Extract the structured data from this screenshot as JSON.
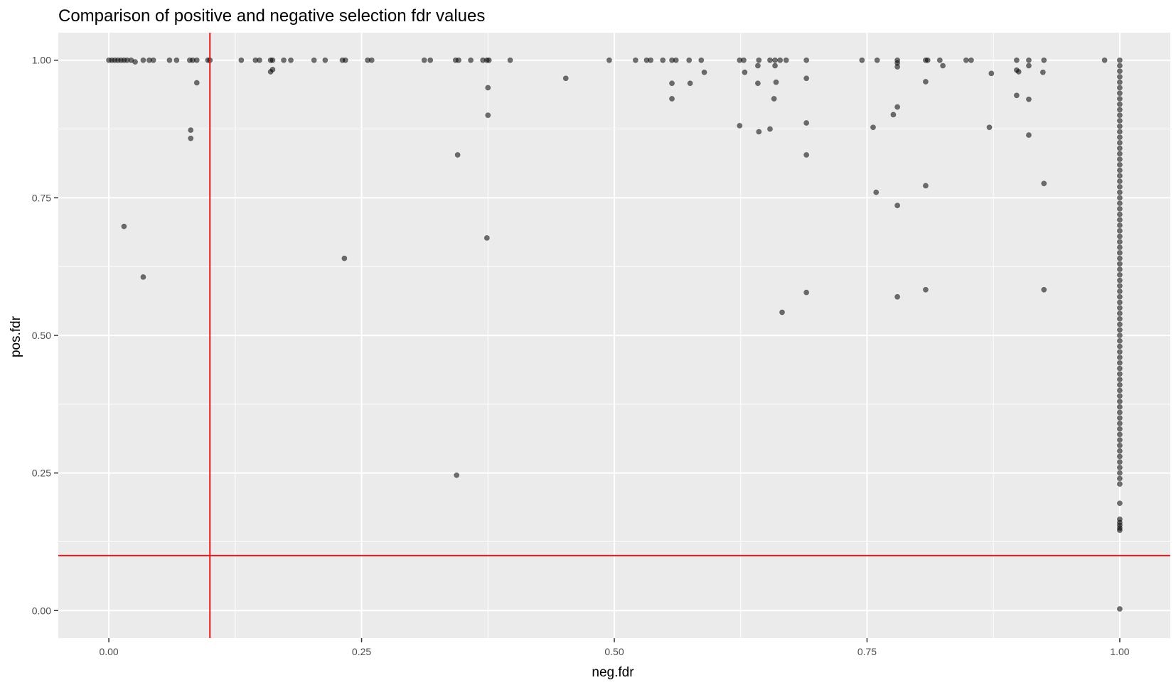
{
  "chart_data": {
    "type": "scatter",
    "title": "Comparison of positive and negative selection fdr values",
    "xlabel": "neg.fdr",
    "ylabel": "pos.fdr",
    "xlim": [
      -0.05,
      1.05
    ],
    "ylim": [
      -0.05,
      1.05
    ],
    "x_ticks": [
      {
        "value": 0.0,
        "label": "0.00"
      },
      {
        "value": 0.25,
        "label": "0.25"
      },
      {
        "value": 0.5,
        "label": "0.50"
      },
      {
        "value": 0.75,
        "label": "0.75"
      },
      {
        "value": 1.0,
        "label": "1.00"
      }
    ],
    "y_ticks": [
      {
        "value": 0.0,
        "label": "0.00"
      },
      {
        "value": 0.25,
        "label": "0.25"
      },
      {
        "value": 0.5,
        "label": "0.50"
      },
      {
        "value": 0.75,
        "label": "0.75"
      },
      {
        "value": 1.0,
        "label": "1.00"
      }
    ],
    "reference_lines": {
      "vertical_x": 0.1,
      "horizontal_y": 0.1,
      "color": "#e41a1c"
    },
    "grid": true,
    "legend": "none",
    "colors": {
      "panel": "#ebebeb",
      "grid": "#ffffff",
      "point": "#000000",
      "point_opacity": 0.55
    },
    "points": [
      [
        0.0,
        1.0
      ],
      [
        0.003,
        1.0
      ],
      [
        0.006,
        1.0
      ],
      [
        0.009,
        1.0
      ],
      [
        0.012,
        1.0
      ],
      [
        0.015,
        1.0
      ],
      [
        0.018,
        1.0
      ],
      [
        0.022,
        1.0
      ],
      [
        0.026,
        0.997
      ],
      [
        0.034,
        1.0
      ],
      [
        0.04,
        1.0
      ],
      [
        0.044,
        1.0
      ],
      [
        0.06,
        1.0
      ],
      [
        0.067,
        1.0
      ],
      [
        0.08,
        1.0
      ],
      [
        0.083,
        1.0
      ],
      [
        0.087,
        1.0
      ],
      [
        0.098,
        1.0
      ],
      [
        0.1,
        1.0
      ],
      [
        0.087,
        0.959
      ],
      [
        0.081,
        0.873
      ],
      [
        0.081,
        0.858
      ],
      [
        0.015,
        0.698
      ],
      [
        0.034,
        0.606
      ],
      [
        0.131,
        1.0
      ],
      [
        0.145,
        1.0
      ],
      [
        0.149,
        1.0
      ],
      [
        0.16,
        1.0
      ],
      [
        0.162,
        1.0
      ],
      [
        0.173,
        1.0
      ],
      [
        0.18,
        1.0
      ],
      [
        0.16,
        0.979
      ],
      [
        0.162,
        0.983
      ],
      [
        0.203,
        1.0
      ],
      [
        0.214,
        1.0
      ],
      [
        0.231,
        1.0
      ],
      [
        0.234,
        1.0
      ],
      [
        0.256,
        1.0
      ],
      [
        0.26,
        1.0
      ],
      [
        0.233,
        0.64
      ],
      [
        0.312,
        1.0
      ],
      [
        0.318,
        1.0
      ],
      [
        0.343,
        1.0
      ],
      [
        0.346,
        1.0
      ],
      [
        0.358,
        1.0
      ],
      [
        0.37,
        1.0
      ],
      [
        0.374,
        1.0
      ],
      [
        0.376,
        1.0
      ],
      [
        0.397,
        1.0
      ],
      [
        0.375,
        0.95
      ],
      [
        0.375,
        0.9
      ],
      [
        0.374,
        0.677
      ],
      [
        0.345,
        0.828
      ],
      [
        0.344,
        0.246
      ],
      [
        0.452,
        0.967
      ],
      [
        0.495,
        1.0
      ],
      [
        0.521,
        1.0
      ],
      [
        0.532,
        1.0
      ],
      [
        0.536,
        1.0
      ],
      [
        0.548,
        1.0
      ],
      [
        0.557,
        1.0
      ],
      [
        0.561,
        1.0
      ],
      [
        0.574,
        1.0
      ],
      [
        0.586,
        1.0
      ],
      [
        0.557,
        0.958
      ],
      [
        0.557,
        0.93
      ],
      [
        0.575,
        0.958
      ],
      [
        0.589,
        0.978
      ],
      [
        0.624,
        1.0
      ],
      [
        0.628,
        1.0
      ],
      [
        0.643,
        1.0
      ],
      [
        0.654,
        1.0
      ],
      [
        0.659,
        1.0
      ],
      [
        0.664,
        1.0
      ],
      [
        0.67,
        1.0
      ],
      [
        0.69,
        1.0
      ],
      [
        0.629,
        0.978
      ],
      [
        0.642,
        0.99
      ],
      [
        0.659,
        0.99
      ],
      [
        0.642,
        0.958
      ],
      [
        0.66,
        0.96
      ],
      [
        0.658,
        0.93
      ],
      [
        0.624,
        0.881
      ],
      [
        0.643,
        0.87
      ],
      [
        0.654,
        0.875
      ],
      [
        0.69,
        0.967
      ],
      [
        0.69,
        0.886
      ],
      [
        0.69,
        0.828
      ],
      [
        0.69,
        0.578
      ],
      [
        0.666,
        0.542
      ],
      [
        0.745,
        1.0
      ],
      [
        0.76,
        1.0
      ],
      [
        0.78,
        1.0
      ],
      [
        0.808,
        1.0
      ],
      [
        0.81,
        1.0
      ],
      [
        0.822,
        1.0
      ],
      [
        0.825,
        0.99
      ],
      [
        0.848,
        1.0
      ],
      [
        0.853,
        1.0
      ],
      [
        0.78,
        0.995
      ],
      [
        0.78,
        0.988
      ],
      [
        0.776,
        0.901
      ],
      [
        0.78,
        0.915
      ],
      [
        0.808,
        0.961
      ],
      [
        0.756,
        0.878
      ],
      [
        0.759,
        0.76
      ],
      [
        0.78,
        0.736
      ],
      [
        0.808,
        0.772
      ],
      [
        0.78,
        0.57
      ],
      [
        0.808,
        0.583
      ],
      [
        0.873,
        0.976
      ],
      [
        0.871,
        0.878
      ],
      [
        0.898,
        1.0
      ],
      [
        0.898,
        0.982
      ],
      [
        0.9,
        0.979
      ],
      [
        0.898,
        0.936
      ],
      [
        0.91,
        1.0
      ],
      [
        0.91,
        0.99
      ],
      [
        0.91,
        0.929
      ],
      [
        0.91,
        0.864
      ],
      [
        0.925,
        1.0
      ],
      [
        0.924,
        0.978
      ],
      [
        0.925,
        0.776
      ],
      [
        0.925,
        0.583
      ],
      [
        0.985,
        1.0
      ],
      [
        1.0,
        1.0
      ],
      [
        1.0,
        0.99
      ],
      [
        1.0,
        0.98
      ],
      [
        1.0,
        0.97
      ],
      [
        1.0,
        0.96
      ],
      [
        1.0,
        0.95
      ],
      [
        1.0,
        0.94
      ],
      [
        1.0,
        0.93
      ],
      [
        1.0,
        0.92
      ],
      [
        1.0,
        0.91
      ],
      [
        1.0,
        0.9
      ],
      [
        1.0,
        0.89
      ],
      [
        1.0,
        0.88
      ],
      [
        1.0,
        0.87
      ],
      [
        1.0,
        0.86
      ],
      [
        1.0,
        0.85
      ],
      [
        1.0,
        0.84
      ],
      [
        1.0,
        0.83
      ],
      [
        1.0,
        0.82
      ],
      [
        1.0,
        0.81
      ],
      [
        1.0,
        0.8
      ],
      [
        1.0,
        0.79
      ],
      [
        1.0,
        0.78
      ],
      [
        1.0,
        0.77
      ],
      [
        1.0,
        0.76
      ],
      [
        1.0,
        0.75
      ],
      [
        1.0,
        0.74
      ],
      [
        1.0,
        0.73
      ],
      [
        1.0,
        0.72
      ],
      [
        1.0,
        0.71
      ],
      [
        1.0,
        0.7
      ],
      [
        1.0,
        0.69
      ],
      [
        1.0,
        0.68
      ],
      [
        1.0,
        0.67
      ],
      [
        1.0,
        0.66
      ],
      [
        1.0,
        0.65
      ],
      [
        1.0,
        0.64
      ],
      [
        1.0,
        0.63
      ],
      [
        1.0,
        0.62
      ],
      [
        1.0,
        0.61
      ],
      [
        1.0,
        0.6
      ],
      [
        1.0,
        0.59
      ],
      [
        1.0,
        0.58
      ],
      [
        1.0,
        0.57
      ],
      [
        1.0,
        0.56
      ],
      [
        1.0,
        0.55
      ],
      [
        1.0,
        0.54
      ],
      [
        1.0,
        0.53
      ],
      [
        1.0,
        0.52
      ],
      [
        1.0,
        0.51
      ],
      [
        1.0,
        0.5
      ],
      [
        1.0,
        0.49
      ],
      [
        1.0,
        0.48
      ],
      [
        1.0,
        0.47
      ],
      [
        1.0,
        0.46
      ],
      [
        1.0,
        0.45
      ],
      [
        1.0,
        0.44
      ],
      [
        1.0,
        0.43
      ],
      [
        1.0,
        0.42
      ],
      [
        1.0,
        0.41
      ],
      [
        1.0,
        0.4
      ],
      [
        1.0,
        0.39
      ],
      [
        1.0,
        0.38
      ],
      [
        1.0,
        0.37
      ],
      [
        1.0,
        0.36
      ],
      [
        1.0,
        0.35
      ],
      [
        1.0,
        0.34
      ],
      [
        1.0,
        0.33
      ],
      [
        1.0,
        0.32
      ],
      [
        1.0,
        0.31
      ],
      [
        1.0,
        0.3
      ],
      [
        1.0,
        0.29
      ],
      [
        1.0,
        0.28
      ],
      [
        1.0,
        0.27
      ],
      [
        1.0,
        0.26
      ],
      [
        1.0,
        0.25
      ],
      [
        1.0,
        0.24
      ],
      [
        1.0,
        0.23
      ],
      [
        1.0,
        0.195
      ],
      [
        1.0,
        0.166
      ],
      [
        1.0,
        0.16
      ],
      [
        1.0,
        0.155
      ],
      [
        1.0,
        0.15
      ],
      [
        1.0,
        0.146
      ],
      [
        1.0,
        0.003
      ]
    ]
  }
}
